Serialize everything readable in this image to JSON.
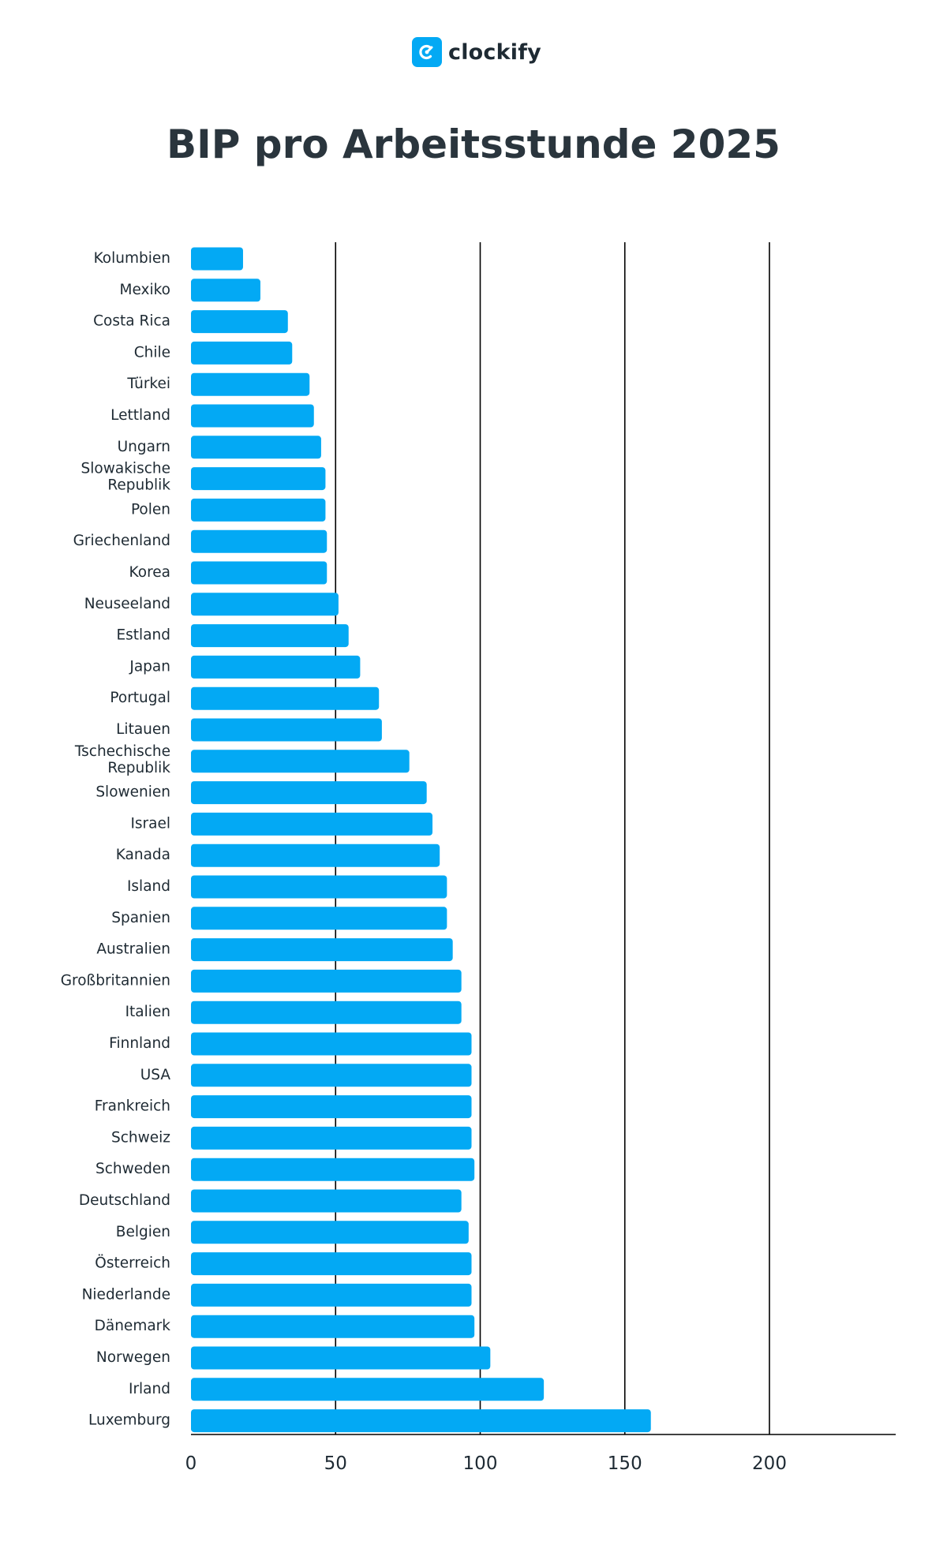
{
  "brand": {
    "name": "clockify",
    "icon": "clockify-logo-icon",
    "color": "#03A9F4"
  },
  "colors": {
    "bar": "#03A9F4",
    "text": "#1E2A33",
    "axis": "#000000"
  },
  "chart_data": {
    "type": "bar",
    "orientation": "horizontal",
    "title": "BIP pro Arbeitsstunde 2025",
    "xlabel": "",
    "ylabel": "",
    "xlim": [
      0,
      245
    ],
    "xticks": [
      "0",
      "50",
      "100",
      "150",
      "200"
    ],
    "grid": "vertical lines at 50, 100, 150, 200",
    "categories": [
      "Kolumbien",
      "Mexiko",
      "Costa Rica",
      "Chile",
      "Türkei",
      "Lettland",
      "Ungarn",
      "Slowakische Republik",
      "Polen",
      "Griechenland",
      "Korea",
      "Neuseeland",
      "Estland",
      "Japan",
      "Portugal",
      "Litauen",
      "Tschechische Republik",
      "Slowenien",
      "Israel",
      "Kanada",
      "Island",
      "Spanien",
      "Australien",
      "Großbritannien",
      "Italien",
      "Finnland",
      "USA",
      "Frankreich",
      "Schweiz",
      "Schweden",
      "Deutschland",
      "Belgien",
      "Österreich",
      "Niederlande",
      "Dänemark",
      "Norwegen",
      "Irland",
      "Luxemburg"
    ],
    "values": [
      18,
      24,
      33.5,
      35,
      41,
      42.5,
      45,
      46.5,
      46.5,
      47,
      47,
      51,
      54.5,
      58.5,
      65,
      66,
      75.5,
      81.5,
      83.5,
      86,
      88.5,
      88.5,
      90.5,
      93.5,
      93.5,
      97,
      97,
      97,
      97,
      98,
      93.5,
      96,
      97,
      97,
      98,
      103.5,
      122,
      159
    ]
  }
}
